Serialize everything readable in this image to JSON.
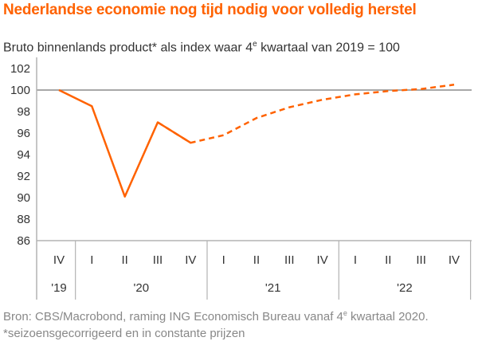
{
  "title": "Nederlandse economie nog tijd nodig voor volledig herstel",
  "subtitle": {
    "before": "Bruto binnenlands product* als index waar 4",
    "sup": "e",
    "after": " kwartaal van 2019 = 100"
  },
  "source": {
    "before": "Bron: CBS/Macrobond, raming ING Economisch Bureau vanaf 4",
    "sup": "e",
    "after": " kwartaal 2020. *seizoensgecorrigeerd en in constante prijzen"
  },
  "chart_data": {
    "type": "line",
    "title": "Nederlandse economie nog tijd nodig voor volledig herstel",
    "ylim": [
      86,
      102
    ],
    "yticks": [
      86,
      88,
      90,
      92,
      94,
      96,
      98,
      100,
      102
    ],
    "reference_line": 100,
    "categories": [
      "IV",
      "I",
      "II",
      "III",
      "IV",
      "I",
      "II",
      "III",
      "IV",
      "I",
      "II",
      "III",
      "IV"
    ],
    "year_labels": [
      {
        "label": "'19",
        "from": 0,
        "to": 0
      },
      {
        "label": "'20",
        "from": 1,
        "to": 4
      },
      {
        "label": "'21",
        "from": 5,
        "to": 8
      },
      {
        "label": "'22",
        "from": 9,
        "to": 12
      }
    ],
    "series": [
      {
        "style": "solid",
        "color": "#ff6200",
        "values": [
          100.0,
          98.5,
          90.1,
          97.0,
          95.1,
          null,
          null,
          null,
          null,
          null,
          null,
          null,
          null
        ]
      },
      {
        "style": "dashed",
        "color": "#ff6200",
        "values": [
          null,
          null,
          null,
          97.0,
          95.1,
          95.8,
          97.4,
          98.4,
          99.1,
          99.6,
          99.9,
          100.1,
          100.5
        ]
      }
    ],
    "grid": false,
    "colors": {
      "line": "#ff6200",
      "reference": "#8c8c8c",
      "axis": "#b3b3b3",
      "text": "#333333"
    }
  }
}
